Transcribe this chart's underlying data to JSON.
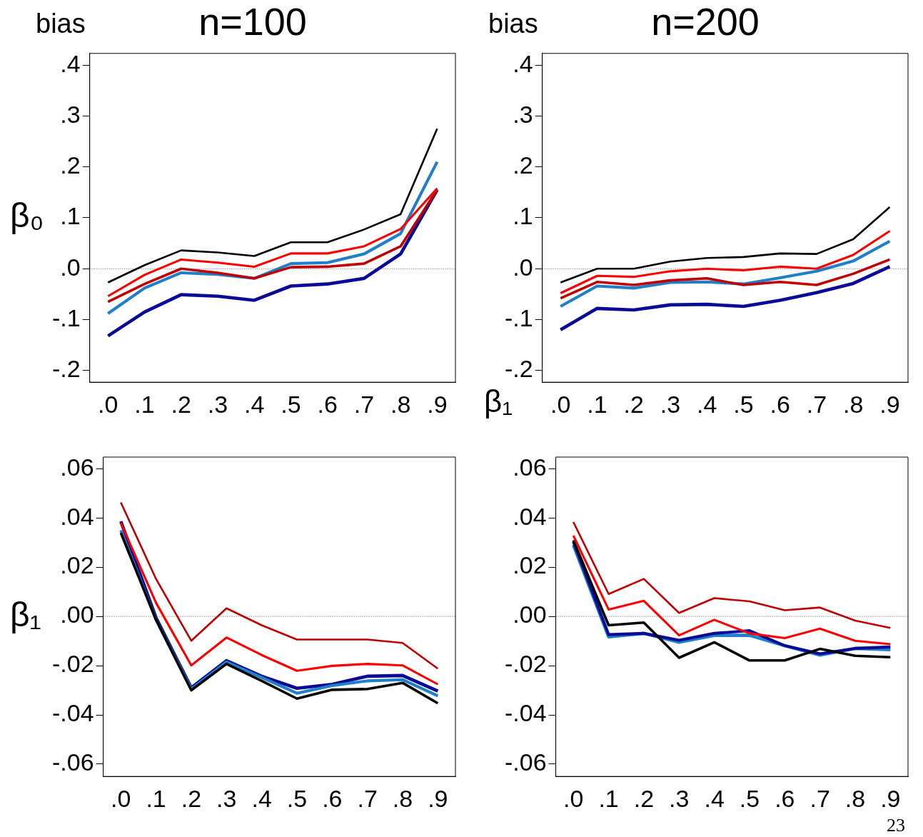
{
  "chart_data": [
    {
      "type": "line",
      "title": "n=100",
      "ylabel": "β₀",
      "annotations": [
        "bias"
      ],
      "categories": [
        ".0",
        ".1",
        ".2",
        ".3",
        ".4",
        ".5",
        ".6",
        ".7",
        ".8",
        ".9"
      ],
      "ylim": [
        -0.223,
        0.423
      ],
      "yticks": [
        {
          "value": -0.2,
          "label": "-.2"
        },
        {
          "value": -0.1,
          "label": "-.1"
        },
        {
          "value": 0,
          "label": ".0"
        },
        {
          "value": 0.1,
          "label": ".1"
        },
        {
          "value": 0.2,
          "label": ".2"
        },
        {
          "value": 0.3,
          "label": ".3"
        },
        {
          "value": 0.4,
          "label": ".4"
        }
      ],
      "grid": false,
      "legend": false,
      "ref_lines": [
        {
          "axis": "y",
          "value": 0,
          "color": "#555555",
          "line_style": "dotted"
        }
      ],
      "series": [
        {
          "color": "#000000",
          "values": [
            -0.027,
            0.007,
            0.036,
            0.032,
            0.025,
            0.052,
            0.052,
            0.077,
            0.107,
            0.275
          ]
        },
        {
          "color": "#ff0000",
          "values": [
            -0.054,
            -0.012,
            0.018,
            0.012,
            0.004,
            0.03,
            0.03,
            0.044,
            0.078,
            0.158
          ]
        },
        {
          "color": "#c00000",
          "values": [
            -0.065,
            -0.03,
            0.0,
            -0.008,
            -0.019,
            0.003,
            0.004,
            0.01,
            0.044,
            0.155
          ]
        },
        {
          "color": "#1f7fc8",
          "values": [
            -0.088,
            -0.038,
            -0.008,
            -0.011,
            -0.019,
            0.01,
            0.012,
            0.029,
            0.069,
            0.21
          ]
        },
        {
          "color": "#0a0a96",
          "values": [
            -0.132,
            -0.085,
            -0.051,
            -0.054,
            -0.062,
            -0.034,
            -0.03,
            -0.019,
            0.029,
            0.155
          ]
        }
      ]
    },
    {
      "type": "line",
      "title": "n=200",
      "annotations": [
        "bias",
        "β₁"
      ],
      "categories": [
        ".0",
        ".1",
        ".2",
        ".3",
        ".4",
        ".5",
        ".6",
        ".7",
        ".8",
        ".9"
      ],
      "ylim": [
        -0.223,
        0.423
      ],
      "yticks": [
        {
          "value": -0.2,
          "label": "-.2"
        },
        {
          "value": -0.1,
          "label": "-.1"
        },
        {
          "value": 0,
          "label": ".0"
        },
        {
          "value": 0.1,
          "label": ".1"
        },
        {
          "value": 0.2,
          "label": ".2"
        },
        {
          "value": 0.3,
          "label": ".3"
        },
        {
          "value": 0.4,
          "label": ".4"
        }
      ],
      "grid": false,
      "legend": false,
      "ref_lines": [
        {
          "axis": "y",
          "value": 0,
          "color": "#555555",
          "line_style": "dotted"
        }
      ],
      "series": [
        {
          "color": "#000000",
          "values": [
            -0.027,
            0.0,
            0.0,
            0.014,
            0.021,
            0.023,
            0.03,
            0.029,
            0.058,
            0.121
          ]
        },
        {
          "color": "#ff0000",
          "values": [
            -0.048,
            -0.014,
            -0.016,
            -0.005,
            0.0,
            -0.003,
            0.004,
            0.0,
            0.027,
            0.074
          ]
        },
        {
          "color": "#c00000",
          "values": [
            -0.058,
            -0.026,
            -0.032,
            -0.023,
            -0.019,
            -0.032,
            -0.026,
            -0.032,
            -0.01,
            0.018
          ]
        },
        {
          "color": "#1f7fc8",
          "values": [
            -0.074,
            -0.034,
            -0.038,
            -0.027,
            -0.026,
            -0.03,
            -0.018,
            -0.005,
            0.015,
            0.054
          ]
        },
        {
          "color": "#0a0a96",
          "values": [
            -0.12,
            -0.078,
            -0.081,
            -0.071,
            -0.07,
            -0.074,
            -0.062,
            -0.047,
            -0.029,
            0.004
          ]
        }
      ]
    },
    {
      "type": "line",
      "ylabel": "β₁",
      "categories": [
        ".0",
        ".1",
        ".2",
        ".3",
        ".4",
        ".5",
        ".6",
        ".7",
        ".8",
        ".9"
      ],
      "ylim": [
        -0.065,
        0.0647
      ],
      "yticks": [
        {
          "value": -0.06,
          "label": "-.06"
        },
        {
          "value": -0.04,
          "label": "-.04"
        },
        {
          "value": -0.02,
          "label": "-.02"
        },
        {
          "value": 0,
          "label": ".00"
        },
        {
          "value": 0.02,
          "label": ".02"
        },
        {
          "value": 0.04,
          "label": ".04"
        },
        {
          "value": 0.06,
          "label": ".06"
        }
      ],
      "grid": false,
      "legend": false,
      "ref_lines": [
        {
          "axis": "y",
          "value": 0,
          "color": "#555555",
          "line_style": "dotted"
        }
      ],
      "series": [
        {
          "color": "#c00000",
          "values": [
            0.0463,
            0.0152,
            -0.0099,
            0.0033,
            -0.0036,
            -0.0094,
            -0.0094,
            -0.0094,
            -0.0108,
            -0.0212
          ]
        },
        {
          "color": "#ff0000",
          "values": [
            0.038,
            0.0055,
            -0.0199,
            -0.0086,
            -0.0157,
            -0.0221,
            -0.0201,
            -0.0193,
            -0.0199,
            -0.0276
          ]
        },
        {
          "color": "#000000",
          "values": [
            0.0339,
            -0.0014,
            -0.03,
            -0.0193,
            -0.0262,
            -0.0334,
            -0.0298,
            -0.0295,
            -0.027,
            -0.0353
          ]
        },
        {
          "color": "#1f7fc8",
          "values": [
            0.035,
            -0.0014,
            -0.0295,
            -0.0185,
            -0.0248,
            -0.0312,
            -0.0281,
            -0.0262,
            -0.0257,
            -0.0323
          ]
        },
        {
          "color": "#0a0a96",
          "values": [
            0.0386,
            -0.0006,
            -0.029,
            -0.018,
            -0.0243,
            -0.0292,
            -0.0276,
            -0.0243,
            -0.024,
            -0.0303
          ]
        }
      ]
    },
    {
      "type": "line",
      "annotations": [
        "23"
      ],
      "categories": [
        ".0",
        ".1",
        ".2",
        ".3",
        ".4",
        ".5",
        ".6",
        ".7",
        ".8",
        ".9"
      ],
      "ylim": [
        -0.065,
        0.0647
      ],
      "yticks": [
        {
          "value": -0.06,
          "label": "-.06"
        },
        {
          "value": -0.04,
          "label": "-.04"
        },
        {
          "value": -0.02,
          "label": "-.02"
        },
        {
          "value": 0,
          "label": ".00"
        },
        {
          "value": 0.02,
          "label": ".02"
        },
        {
          "value": 0.04,
          "label": ".04"
        },
        {
          "value": 0.06,
          "label": ".06"
        }
      ],
      "grid": false,
      "legend": false,
      "ref_lines": [
        {
          "axis": "y",
          "value": 0,
          "color": "#555555",
          "line_style": "dotted"
        }
      ],
      "series": [
        {
          "color": "#c00000",
          "values": [
            0.0383,
            0.0091,
            0.0152,
            0.0014,
            0.0074,
            0.0061,
            0.0025,
            0.0036,
            -0.0017,
            -0.0047
          ]
        },
        {
          "color": "#ff0000",
          "values": [
            0.0328,
            0.0028,
            0.0063,
            -0.0077,
            -0.0014,
            -0.0069,
            -0.0088,
            -0.005,
            -0.0099,
            -0.0113
          ]
        },
        {
          "color": "#000000",
          "values": [
            0.0309,
            -0.0036,
            -0.0025,
            -0.0168,
            -0.0105,
            -0.0179,
            -0.0179,
            -0.0132,
            -0.016,
            -0.0166
          ]
        },
        {
          "color": "#0a0a96",
          "values": [
            0.0303,
            -0.0074,
            -0.0069,
            -0.0097,
            -0.0069,
            -0.0058,
            -0.0119,
            -0.0152,
            -0.013,
            -0.0124
          ]
        },
        {
          "color": "#1f7fc8",
          "values": [
            0.029,
            -0.0083,
            -0.0069,
            -0.0105,
            -0.0077,
            -0.0077,
            -0.0119,
            -0.0157,
            -0.013,
            -0.0135
          ]
        }
      ]
    }
  ]
}
